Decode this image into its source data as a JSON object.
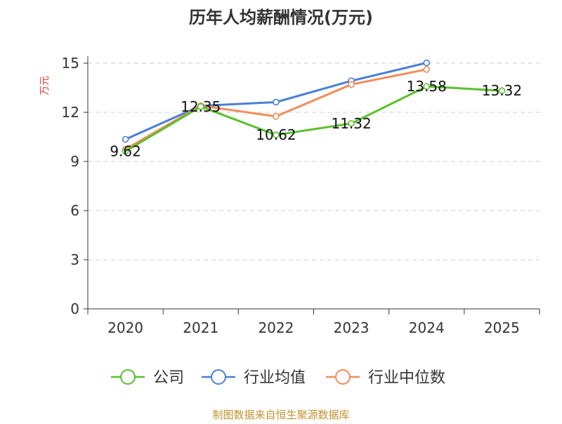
{
  "chart_data": {
    "type": "line",
    "title": "历年人均薪酬情况(万元)",
    "ylabel": "万元",
    "xlabel": "",
    "categories": [
      "2020",
      "2021",
      "2022",
      "2023",
      "2024",
      "2025"
    ],
    "ylim": [
      0,
      15
    ],
    "yticks": [
      0,
      3,
      6,
      9,
      12,
      15
    ],
    "grid": true,
    "legend_position": "bottom",
    "series": [
      {
        "name": "公司",
        "color": "#5ac02c",
        "values": [
          9.62,
          12.35,
          10.62,
          11.32,
          13.58,
          13.32
        ],
        "labels": [
          "9.62",
          "12.35",
          "10.62",
          "11.32",
          "13.58",
          "13.32"
        ]
      },
      {
        "name": "行业均值",
        "color": "#4a7fd6",
        "values": [
          10.35,
          12.4,
          12.62,
          13.92,
          15.02,
          null
        ]
      },
      {
        "name": "行业中位数",
        "color": "#f28b5a",
        "values": [
          9.75,
          12.4,
          11.75,
          13.7,
          14.62,
          null
        ]
      }
    ],
    "source_note": "制图数据来自恒生聚源数据库"
  }
}
